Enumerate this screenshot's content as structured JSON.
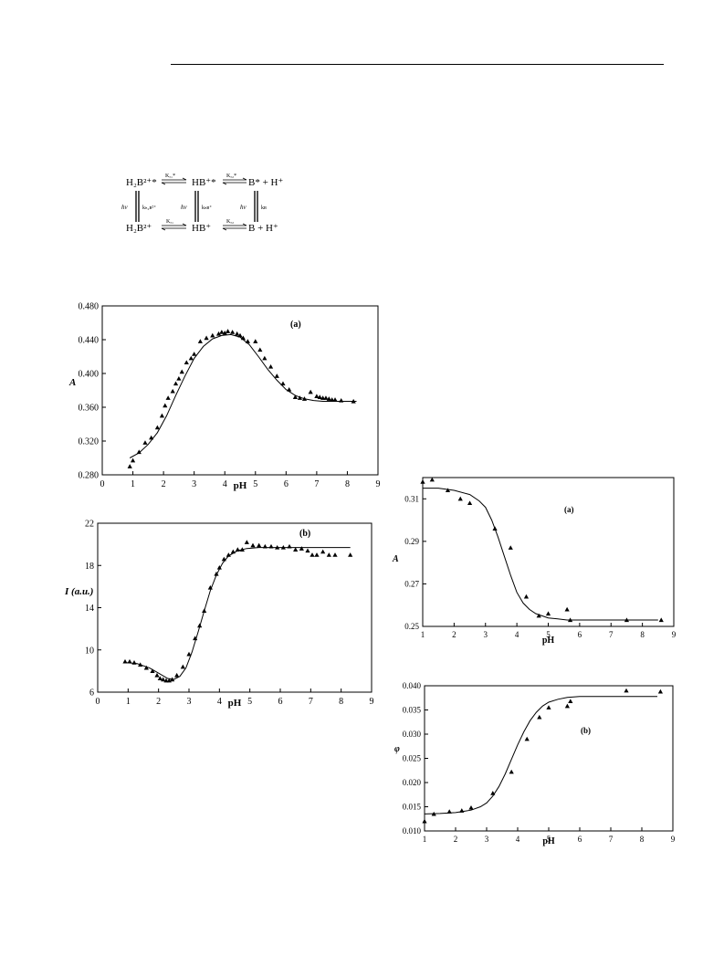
{
  "scheme": {
    "top_row": [
      "H₂B²⁺*",
      "HB⁺*",
      "B* + H⁺"
    ],
    "bottom_row": [
      "H₂B²⁺",
      "HB⁺",
      "B + H⁺"
    ],
    "top_k": [
      "Kₐ₁*",
      "Kₐ₂*"
    ],
    "bottom_k": [
      "Kₐ₁",
      "Kₐ₂"
    ],
    "hv": "hν",
    "rates": [
      "kₕ₂ʙ²⁺",
      "kₕʙ⁺",
      "kʙ"
    ]
  },
  "chart_data": [
    {
      "type": "scatter",
      "panel_label": "(a)",
      "xlabel": "pH",
      "ylabel": "A",
      "xlim": [
        0,
        9
      ],
      "ylim": [
        0.28,
        0.48
      ],
      "xticks": [
        "0",
        "1",
        "2",
        "3",
        "4",
        "5",
        "6",
        "7",
        "8",
        "9"
      ],
      "yticks": [
        "0.280",
        "0.320",
        "0.360",
        "0.400",
        "0.440",
        "0.480"
      ],
      "points": {
        "x": [
          0.9,
          1.0,
          1.2,
          1.4,
          1.6,
          1.8,
          1.95,
          2.05,
          2.15,
          2.3,
          2.4,
          2.5,
          2.6,
          2.75,
          2.9,
          3.0,
          3.2,
          3.4,
          3.6,
          3.8,
          3.9,
          4.0,
          4.1,
          4.25,
          4.4,
          4.5,
          4.6,
          4.75,
          5.0,
          5.15,
          5.3,
          5.5,
          5.7,
          5.9,
          6.1,
          6.3,
          6.45,
          6.6,
          6.8,
          7.0,
          7.1,
          7.2,
          7.3,
          7.4,
          7.5,
          7.6,
          7.8,
          8.2
        ],
        "y": [
          0.29,
          0.297,
          0.307,
          0.318,
          0.324,
          0.336,
          0.35,
          0.362,
          0.371,
          0.379,
          0.388,
          0.394,
          0.402,
          0.413,
          0.418,
          0.423,
          0.438,
          0.442,
          0.445,
          0.447,
          0.449,
          0.448,
          0.45,
          0.449,
          0.447,
          0.445,
          0.442,
          0.438,
          0.438,
          0.428,
          0.418,
          0.408,
          0.397,
          0.388,
          0.381,
          0.372,
          0.371,
          0.37,
          0.378,
          0.373,
          0.372,
          0.371,
          0.371,
          0.37,
          0.369,
          0.369,
          0.368,
          0.367
        ]
      },
      "fit": {
        "x": [
          0.9,
          1.2,
          1.5,
          1.8,
          2.1,
          2.4,
          2.7,
          3.0,
          3.3,
          3.6,
          3.9,
          4.2,
          4.5,
          4.8,
          5.1,
          5.4,
          5.7,
          6.0,
          6.3,
          6.6,
          6.9,
          7.2,
          7.5,
          7.8,
          8.1,
          8.3
        ],
        "y": [
          0.3,
          0.306,
          0.316,
          0.33,
          0.35,
          0.374,
          0.397,
          0.418,
          0.432,
          0.441,
          0.445,
          0.446,
          0.443,
          0.434,
          0.42,
          0.405,
          0.392,
          0.381,
          0.374,
          0.37,
          0.368,
          0.367,
          0.367,
          0.367,
          0.367,
          0.367
        ]
      }
    },
    {
      "type": "scatter",
      "panel_label": "(b)",
      "xlabel": "pH",
      "ylabel": "I (a.u.)",
      "xlim": [
        0,
        9
      ],
      "ylim": [
        6,
        22
      ],
      "xticks": [
        "0",
        "1",
        "2",
        "3",
        "4",
        "5",
        "6",
        "7",
        "8",
        "9"
      ],
      "yticks": [
        "6",
        "10",
        "14",
        "18",
        "22"
      ],
      "points": {
        "x": [
          0.9,
          1.05,
          1.2,
          1.4,
          1.6,
          1.8,
          1.95,
          2.05,
          2.15,
          2.25,
          2.35,
          2.45,
          2.6,
          2.8,
          3.0,
          3.2,
          3.35,
          3.5,
          3.7,
          3.9,
          4.0,
          4.15,
          4.3,
          4.45,
          4.6,
          4.75,
          4.9,
          5.1,
          5.3,
          5.5,
          5.7,
          5.9,
          6.1,
          6.3,
          6.5,
          6.7,
          6.9,
          7.05,
          7.2,
          7.4,
          7.6,
          7.8,
          8.3
        ],
        "y": [
          8.9,
          8.9,
          8.8,
          8.6,
          8.3,
          8.0,
          7.6,
          7.3,
          7.2,
          7.1,
          7.1,
          7.2,
          7.6,
          8.4,
          9.6,
          11.1,
          12.3,
          13.7,
          15.9,
          17.2,
          17.8,
          18.6,
          19.0,
          19.3,
          19.5,
          19.5,
          20.2,
          19.9,
          19.9,
          19.8,
          19.8,
          19.7,
          19.7,
          19.8,
          19.5,
          19.6,
          19.4,
          19.0,
          19.0,
          19.3,
          19.0,
          19.0,
          19.0
        ]
      },
      "fit": {
        "x": [
          0.9,
          1.3,
          1.7,
          2.0,
          2.3,
          2.5,
          2.7,
          2.9,
          3.1,
          3.3,
          3.5,
          3.7,
          3.9,
          4.1,
          4.3,
          4.6,
          4.9,
          5.3,
          5.8,
          6.3,
          6.8,
          7.3,
          7.8,
          8.3
        ],
        "y": [
          8.8,
          8.7,
          8.3,
          7.8,
          7.3,
          7.2,
          7.5,
          8.3,
          9.8,
          11.7,
          13.7,
          15.6,
          17.1,
          18.2,
          18.9,
          19.4,
          19.6,
          19.7,
          19.7,
          19.7,
          19.7,
          19.7,
          19.7,
          19.7
        ]
      }
    },
    {
      "type": "scatter",
      "panel_label": "(a)",
      "xlabel": "pH",
      "ylabel": "A",
      "xlim": [
        1,
        9
      ],
      "ylim": [
        0.25,
        0.32
      ],
      "xticks": [
        "1",
        "2",
        "3",
        "4",
        "5",
        "6",
        "7",
        "8",
        "9"
      ],
      "yticks": [
        "0.25",
        "0.27",
        "0.29",
        "0.31"
      ],
      "points": {
        "x": [
          1.0,
          1.3,
          1.8,
          2.2,
          2.5,
          3.3,
          3.8,
          4.3,
          4.7,
          5.0,
          5.6,
          5.7,
          7.5,
          8.6
        ],
        "y": [
          0.318,
          0.319,
          0.314,
          0.31,
          0.308,
          0.296,
          0.287,
          0.264,
          0.255,
          0.256,
          0.258,
          0.253,
          0.253,
          0.253
        ]
      },
      "fit": {
        "x": [
          1.0,
          1.5,
          2.0,
          2.5,
          2.8,
          3.0,
          3.2,
          3.4,
          3.6,
          3.8,
          4.0,
          4.2,
          4.4,
          4.6,
          4.8,
          5.0,
          5.3,
          5.6,
          6.0,
          6.5,
          7.0,
          7.5,
          8.0,
          8.5
        ],
        "y": [
          0.315,
          0.315,
          0.314,
          0.312,
          0.309,
          0.306,
          0.3,
          0.292,
          0.283,
          0.274,
          0.266,
          0.261,
          0.258,
          0.256,
          0.255,
          0.254,
          0.2535,
          0.253,
          0.253,
          0.253,
          0.253,
          0.253,
          0.253,
          0.253
        ]
      }
    },
    {
      "type": "scatter",
      "panel_label": "(b)",
      "xlabel": "pH",
      "ylabel": "φ",
      "xlim": [
        1,
        9
      ],
      "ylim": [
        0.01,
        0.04
      ],
      "xticks": [
        "1",
        "2",
        "3",
        "4",
        "5",
        "6",
        "7",
        "8",
        "9"
      ],
      "yticks": [
        "0.010",
        "0.015",
        "0.020",
        "0.025",
        "0.030",
        "0.035",
        "0.040"
      ],
      "points": {
        "x": [
          1.0,
          1.3,
          1.8,
          2.2,
          2.5,
          3.2,
          3.8,
          4.3,
          4.7,
          5.0,
          5.6,
          5.7,
          7.5,
          8.6
        ],
        "y": [
          0.012,
          0.0135,
          0.014,
          0.0142,
          0.0148,
          0.0178,
          0.0222,
          0.029,
          0.0335,
          0.0355,
          0.0358,
          0.0368,
          0.039,
          0.0388
        ]
      },
      "fit": {
        "x": [
          1.0,
          1.5,
          2.0,
          2.5,
          2.8,
          3.0,
          3.2,
          3.4,
          3.6,
          3.8,
          4.0,
          4.2,
          4.4,
          4.6,
          4.8,
          5.0,
          5.3,
          5.6,
          6.0,
          6.5,
          7.0,
          7.5,
          8.0,
          8.5
        ],
        "y": [
          0.0135,
          0.0136,
          0.0138,
          0.0143,
          0.015,
          0.0158,
          0.0172,
          0.0192,
          0.0218,
          0.0248,
          0.0278,
          0.0305,
          0.0328,
          0.0345,
          0.0358,
          0.0366,
          0.0372,
          0.0376,
          0.0378,
          0.0378,
          0.0378,
          0.0378,
          0.0378,
          0.0378
        ]
      }
    }
  ]
}
